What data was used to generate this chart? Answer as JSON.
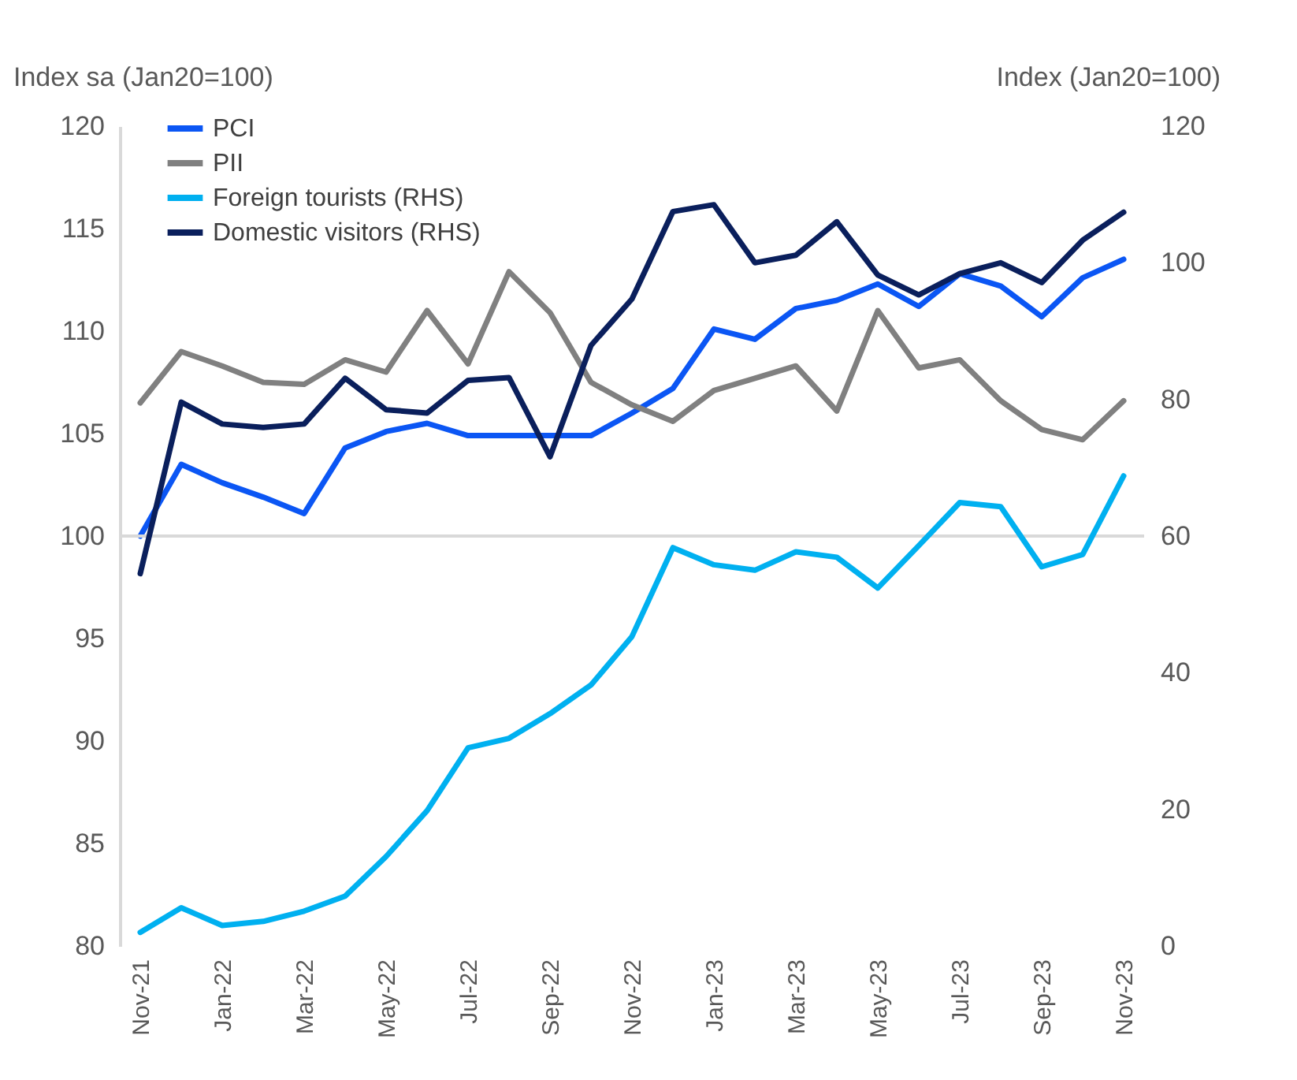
{
  "chart_data": {
    "type": "line",
    "ylabel": "Index sa (Jan20=100)",
    "y2label": "Index (Jan20=100)",
    "categories": [
      "Nov-21",
      null,
      "Jan-22",
      null,
      "Mar-22",
      null,
      "May-22",
      null,
      "Jul-22",
      null,
      "Sep-22",
      null,
      "Nov-22",
      null,
      "Jan-23",
      null,
      "Mar-23",
      null,
      "May-23",
      null,
      "Jul-23",
      null,
      "Sep-23",
      null,
      "Nov-23"
    ],
    "series": [
      {
        "name": "PCI",
        "color": "#0b56f4",
        "values": [
          100.0,
          103.5,
          102.6,
          101.9,
          101.1,
          104.3,
          105.1,
          105.5,
          104.9,
          104.9,
          104.9,
          104.9,
          106.0,
          107.2,
          110.1,
          109.6,
          111.1,
          111.5,
          112.3,
          111.2,
          112.8,
          112.2,
          110.7,
          112.6,
          113.5
        ]
      },
      {
        "name": "PII",
        "color": "#808080",
        "values": [
          106.5,
          109.0,
          108.3,
          107.5,
          107.4,
          108.6,
          108.0,
          111.0,
          108.4,
          112.9,
          110.9,
          107.5,
          106.4,
          105.6,
          107.1,
          107.7,
          108.3,
          106.1,
          111.0,
          108.2,
          108.6,
          106.6,
          105.2,
          104.7,
          106.6
        ]
      },
      {
        "name": "Foreign tourists (RHS)",
        "color": "#00b0f0",
        "axis": "y2",
        "values": [
          2,
          5.6,
          3,
          3.6,
          5.1,
          7.3,
          13.1,
          19.8,
          29,
          30.4,
          34,
          38.2,
          45.3,
          58.3,
          55.8,
          55,
          57.7,
          56.9,
          52.4,
          58.6,
          64.9,
          64.3,
          55.5,
          57.3,
          68.8
        ]
      },
      {
        "name": "Domestic visitors (RHS)",
        "color": "#0a1f5c",
        "axis": "y2",
        "values": [
          54.5,
          79.6,
          76.4,
          75.9,
          76.4,
          83.1,
          78.5,
          78,
          82.8,
          83.2,
          71.6,
          87.9,
          94.7,
          107.5,
          108.5,
          100,
          101.1,
          106,
          98.2,
          95.3,
          98.4,
          100,
          97.1,
          103.3,
          107.4
        ]
      }
    ],
    "ylim": [
      80,
      120
    ],
    "yticks": [
      80,
      85,
      90,
      95,
      100,
      105,
      110,
      115,
      120
    ],
    "y2lim": [
      0,
      120
    ],
    "y2ticks": [
      0,
      20,
      40,
      60,
      80,
      100,
      120
    ],
    "ref_lines": [
      {
        "axis": "y",
        "value": 100,
        "color": "#d9d9d9"
      }
    ],
    "legend": "top left",
    "grid": false,
    "marker": "none",
    "line_style": "solid"
  }
}
